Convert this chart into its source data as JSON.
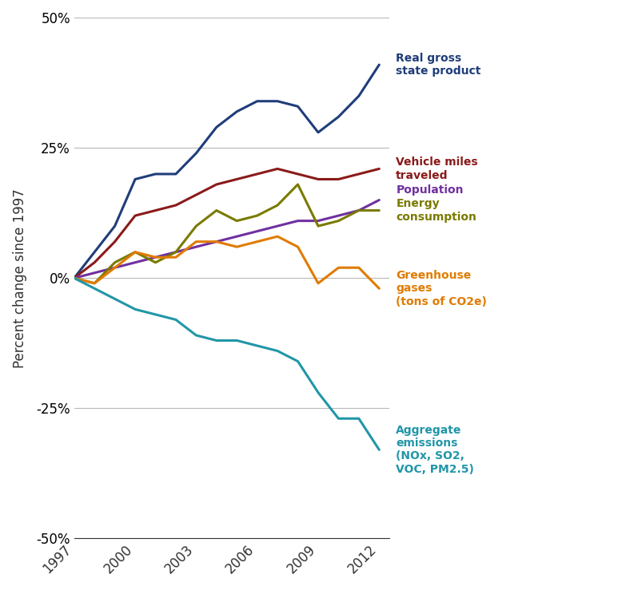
{
  "title": "",
  "ylabel": "Percent change since 1997",
  "xlabel": "",
  "ylim": [
    -50,
    50
  ],
  "xlim": [
    1997,
    2012.5
  ],
  "yticks": [
    -50,
    -25,
    0,
    25,
    50
  ],
  "xticks": [
    1997,
    2000,
    2003,
    2006,
    2009,
    2012
  ],
  "background_color": "#ffffff",
  "grid_color": "#b8b8b8",
  "series": [
    {
      "label": "Real gross\nstate product",
      "color": "#1f3d7a",
      "linewidth": 2.2,
      "x": [
        1997,
        1998,
        1999,
        2000,
        2001,
        2002,
        2003,
        2004,
        2005,
        2006,
        2007,
        2008,
        2009,
        2010,
        2011,
        2012
      ],
      "y": [
        0,
        5,
        10,
        19,
        20,
        20,
        24,
        29,
        32,
        34,
        34,
        33,
        28,
        31,
        35,
        41
      ]
    },
    {
      "label": "Vehicle miles\ntraveled",
      "color": "#8b1a1a",
      "linewidth": 2.2,
      "x": [
        1997,
        1998,
        1999,
        2000,
        2001,
        2002,
        2003,
        2004,
        2005,
        2006,
        2007,
        2008,
        2009,
        2010,
        2011,
        2012
      ],
      "y": [
        0,
        3,
        7,
        12,
        13,
        14,
        16,
        18,
        19,
        20,
        21,
        20,
        19,
        19,
        20,
        21
      ]
    },
    {
      "label": "Population",
      "color": "#7030a0",
      "linewidth": 2.2,
      "x": [
        1997,
        1998,
        1999,
        2000,
        2001,
        2002,
        2003,
        2004,
        2005,
        2006,
        2007,
        2008,
        2009,
        2010,
        2011,
        2012
      ],
      "y": [
        0,
        1,
        2,
        3,
        4,
        5,
        6,
        7,
        8,
        9,
        10,
        11,
        11,
        12,
        13,
        15
      ]
    },
    {
      "label": "Energy\nconsumption",
      "color": "#7a7a00",
      "linewidth": 2.2,
      "x": [
        1997,
        1998,
        1999,
        2000,
        2001,
        2002,
        2003,
        2004,
        2005,
        2006,
        2007,
        2008,
        2009,
        2010,
        2011,
        2012
      ],
      "y": [
        0,
        -1,
        3,
        5,
        3,
        5,
        10,
        13,
        11,
        12,
        14,
        18,
        10,
        11,
        13,
        13
      ]
    },
    {
      "label": "Greenhouse\ngases\n(tons of CO2e)",
      "color": "#e07b00",
      "linewidth": 2.2,
      "x": [
        1997,
        1998,
        1999,
        2000,
        2001,
        2002,
        2003,
        2004,
        2005,
        2006,
        2007,
        2008,
        2009,
        2010,
        2011,
        2012
      ],
      "y": [
        0,
        -1,
        2,
        5,
        4,
        4,
        7,
        7,
        6,
        7,
        8,
        6,
        -1,
        2,
        2,
        -2
      ]
    },
    {
      "label": "Aggregate\nemissions\n(NOx, SO2,\nVOC, PM2.5)",
      "color": "#2196a8",
      "linewidth": 2.2,
      "x": [
        1997,
        1998,
        1999,
        2000,
        2001,
        2002,
        2003,
        2004,
        2005,
        2006,
        2007,
        2008,
        2009,
        2010,
        2011,
        2012
      ],
      "y": [
        0,
        -2,
        -4,
        -6,
        -7,
        -8,
        -11,
        -12,
        -12,
        -13,
        -14,
        -16,
        -22,
        -27,
        -27,
        -33
      ]
    }
  ],
  "label_texts": [
    "Real gross\nstate product",
    "Vehicle miles\ntraveled",
    "Population",
    "Energy\nconsumption",
    "Greenhouse\ngases\n(tons of CO2e)",
    "Aggregate\nemissions\n(NOx, SO2,\nVOC, PM2.5)"
  ],
  "label_colors": [
    "#1f3d7a",
    "#8b1a1a",
    "#7030a0",
    "#7a7a00",
    "#e07b00",
    "#2196a8"
  ],
  "label_end_y": [
    41,
    21,
    17,
    13,
    -2,
    -33
  ],
  "legend_fontsize": 10,
  "axis_fontsize": 11,
  "tick_fontsize": 12,
  "ylabel_fontsize": 12
}
